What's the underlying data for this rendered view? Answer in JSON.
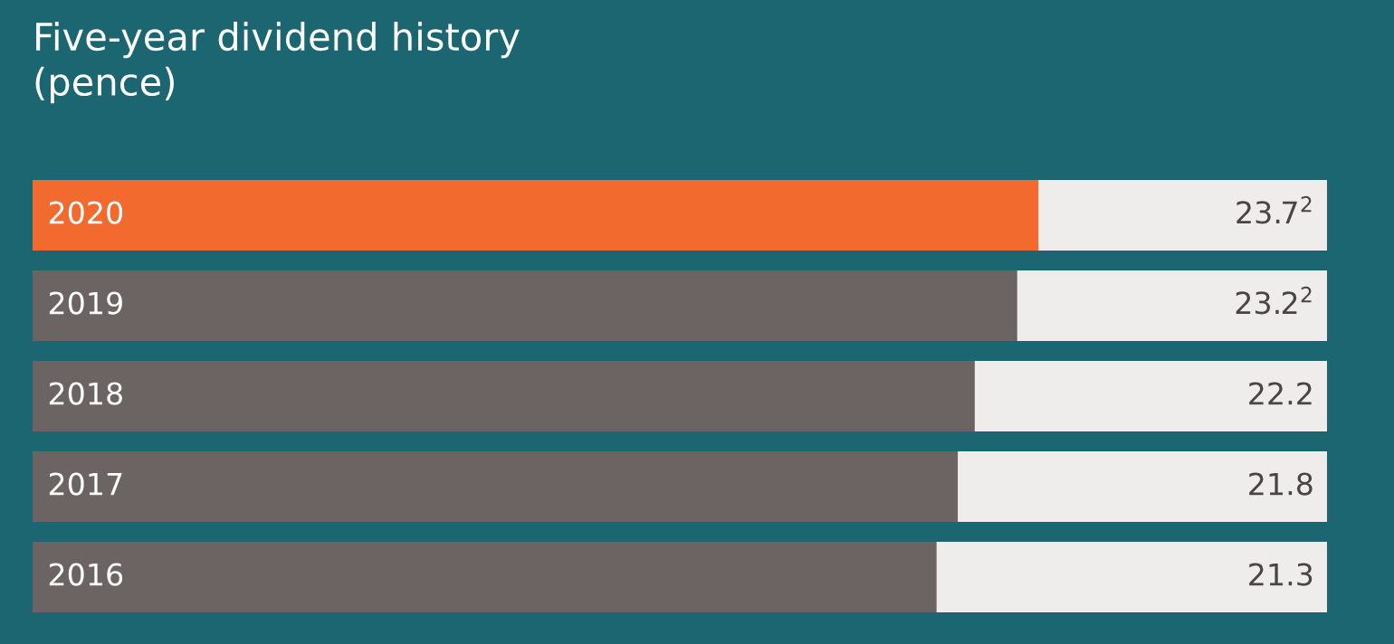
{
  "chart_data": {
    "type": "bar",
    "orientation": "horizontal",
    "title": "Five-year dividend history\n(pence)",
    "categories": [
      "2020",
      "2019",
      "2018",
      "2017",
      "2016"
    ],
    "values": [
      23.7,
      23.2,
      22.2,
      21.8,
      21.3
    ],
    "colors": [
      "#f26a2e",
      "#6b6463",
      "#6b6463",
      "#6b6463",
      "#6b6463"
    ],
    "value_labels": [
      "23.7$^{2}$",
      "23.2$^{2}$",
      "22.2",
      "21.8",
      "21.3"
    ],
    "xlim": [
      0,
      30.5
    ]
  }
}
